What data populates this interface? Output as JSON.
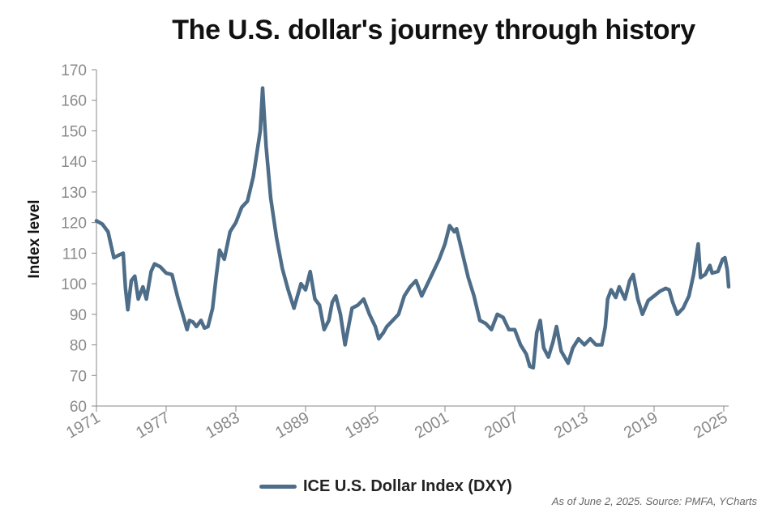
{
  "colors": {
    "line": "#4e6d88",
    "axis": "#888888",
    "tick_text": "#8a8a8a"
  },
  "chart_data": {
    "type": "line",
    "title": "The U.S. dollar's journey through history",
    "ylabel": "Index level",
    "xlabel": "",
    "xlim": [
      1971,
      2025.42
    ],
    "ylim": [
      60,
      170
    ],
    "yticks": [
      60,
      70,
      80,
      90,
      100,
      110,
      120,
      130,
      140,
      150,
      160,
      170
    ],
    "xticks": [
      "1971",
      "1977",
      "1983",
      "1989",
      "1995",
      "2001",
      "2007",
      "2013",
      "2019",
      "2025"
    ],
    "grid": false,
    "legend_position": "bottom",
    "series": [
      {
        "name": "ICE U.S. Dollar Index (DXY)",
        "x": [
          1971.0,
          1971.5,
          1972.0,
          1972.5,
          1973.0,
          1973.3,
          1973.5,
          1973.7,
          1974.0,
          1974.3,
          1974.6,
          1975.0,
          1975.3,
          1975.7,
          1976.0,
          1976.5,
          1977.0,
          1977.5,
          1978.0,
          1978.5,
          1978.8,
          1979.0,
          1979.3,
          1979.6,
          1980.0,
          1980.3,
          1980.6,
          1981.0,
          1981.3,
          1981.6,
          1982.0,
          1982.5,
          1983.0,
          1983.5,
          1984.0,
          1984.5,
          1984.9,
          1985.1,
          1985.3,
          1985.6,
          1986.0,
          1986.5,
          1987.0,
          1987.5,
          1988.0,
          1988.3,
          1988.6,
          1989.0,
          1989.4,
          1989.8,
          1990.2,
          1990.6,
          1991.0,
          1991.3,
          1991.6,
          1992.0,
          1992.4,
          1992.7,
          1993.0,
          1993.5,
          1994.0,
          1994.5,
          1995.0,
          1995.3,
          1995.7,
          1996.0,
          1996.5,
          1997.0,
          1997.5,
          1998.0,
          1998.5,
          1999.0,
          1999.5,
          2000.0,
          2000.5,
          2001.0,
          2001.4,
          2001.8,
          2002.0,
          2002.5,
          2003.0,
          2003.5,
          2004.0,
          2004.5,
          2005.0,
          2005.5,
          2006.0,
          2006.5,
          2007.0,
          2007.5,
          2008.0,
          2008.3,
          2008.6,
          2008.9,
          2009.2,
          2009.5,
          2009.9,
          2010.3,
          2010.6,
          2011.0,
          2011.3,
          2011.6,
          2012.0,
          2012.5,
          2013.0,
          2013.5,
          2014.0,
          2014.5,
          2014.8,
          2015.0,
          2015.3,
          2015.7,
          2016.0,
          2016.5,
          2016.9,
          2017.2,
          2017.6,
          2018.0,
          2018.5,
          2019.0,
          2019.5,
          2020.0,
          2020.3,
          2020.6,
          2021.0,
          2021.5,
          2022.0,
          2022.4,
          2022.8,
          2023.0,
          2023.4,
          2023.8,
          2024.0,
          2024.5,
          2024.9,
          2025.1,
          2025.3,
          2025.42
        ],
        "values": [
          120.6,
          119.5,
          117.0,
          108.5,
          109.5,
          110.0,
          98.5,
          91.5,
          101.0,
          102.5,
          95.0,
          99.0,
          95.0,
          104.0,
          106.5,
          105.5,
          103.5,
          103.0,
          95.5,
          89.0,
          85.0,
          88.0,
          87.5,
          86.0,
          88.0,
          85.5,
          86.0,
          92.0,
          102.0,
          111.0,
          108.0,
          117.0,
          120.0,
          125.0,
          127.0,
          135.0,
          145.0,
          150.0,
          164.0,
          145.0,
          128.0,
          115.0,
          105.0,
          98.0,
          92.0,
          96.0,
          100.0,
          98.0,
          104.0,
          95.0,
          93.0,
          85.0,
          88.0,
          94.0,
          96.0,
          90.0,
          80.0,
          86.0,
          92.0,
          93.0,
          95.0,
          90.0,
          86.0,
          82.0,
          84.0,
          86.0,
          88.0,
          90.0,
          96.0,
          99.0,
          101.0,
          96.0,
          100.0,
          104.0,
          108.0,
          113.0,
          119.0,
          117.0,
          118.0,
          110.0,
          102.0,
          96.0,
          88.0,
          87.0,
          85.0,
          90.0,
          89.0,
          85.0,
          85.0,
          80.0,
          77.0,
          73.0,
          72.5,
          84.0,
          88.0,
          79.0,
          76.0,
          81.0,
          86.0,
          78.0,
          76.0,
          74.0,
          79.0,
          82.0,
          80.0,
          82.0,
          80.0,
          80.0,
          86.0,
          95.0,
          98.0,
          95.5,
          99.0,
          95.0,
          101.0,
          103.0,
          95.0,
          90.0,
          94.5,
          96.0,
          97.5,
          98.5,
          98.0,
          94.0,
          90.0,
          92.0,
          96.0,
          103.0,
          113.0,
          102.0,
          103.0,
          106.0,
          103.5,
          104.0,
          108.0,
          108.5,
          104.5,
          99.0
        ]
      }
    ]
  },
  "legend": {
    "label": "ICE U.S. Dollar Index (DXY)"
  },
  "source_note": "As of June 2, 2025. Source: PMFA, YCharts"
}
